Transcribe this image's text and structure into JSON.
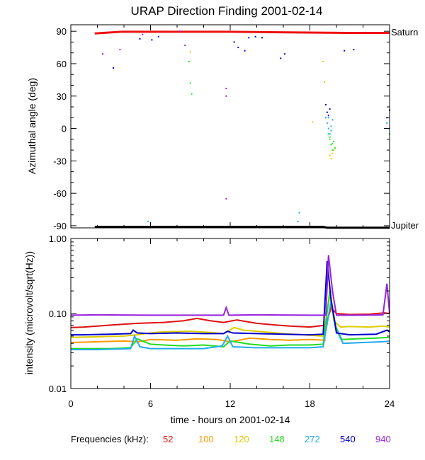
{
  "chart_data": [
    {
      "type": "scatter",
      "title": "URAP Direction Finding  2001-02-14",
      "ylabel": "Azimuthal angle (deg)",
      "xlim": [
        0,
        24
      ],
      "ylim": [
        -92,
        96
      ],
      "yticks": [
        "90",
        "60",
        "30",
        "0",
        "-30",
        "-60",
        "-90"
      ],
      "reference_labels": {
        "top": "Saturn",
        "bottom": "Jupiter"
      },
      "reference_lines": [
        {
          "name": "Saturn",
          "color": "#ee1111",
          "x": [
            1.8,
            3.8,
            11.8,
            20.8,
            24
          ],
          "y": [
            88,
            89.5,
            89.5,
            88.5,
            88.5
          ]
        },
        {
          "name": "Jupiter",
          "color": "#000000",
          "x": [
            1.8,
            19,
            19.3,
            24
          ],
          "y": [
            -91,
            -91,
            -91.8,
            -91.8
          ]
        }
      ],
      "series": [
        {
          "color": "#9922dd",
          "x": [
            2.4,
            3.2,
            3.7,
            5.4,
            8.2,
            8.6,
            11.7,
            11.7,
            11.7
          ],
          "y": [
            69,
            56,
            73,
            87,
            90,
            77,
            37,
            30,
            -65
          ]
        },
        {
          "color": "#0000cc",
          "x": [
            3.2,
            5.2,
            6.1,
            6.6,
            12.3,
            12.6,
            13.1,
            13.4,
            13.9,
            14.4,
            15.8,
            16.1,
            20.6,
            21.3,
            24.0,
            23.8,
            19.2,
            19.3,
            19.4,
            19.5
          ],
          "y": [
            56,
            83,
            82,
            85,
            80,
            75,
            72,
            84,
            85,
            84,
            65,
            69,
            72,
            73,
            17,
            10,
            22,
            15,
            12,
            18
          ]
        },
        {
          "color": "#22aaee",
          "x": [
            5.8,
            17.2,
            17.1,
            19.2,
            19.3,
            19.4,
            19.5,
            19.6,
            19.7,
            19.4,
            19.6,
            23.8,
            24.0
          ],
          "y": [
            -86,
            -78,
            -86,
            10,
            5,
            0,
            -5,
            -2,
            8,
            10,
            2,
            5,
            0
          ]
        },
        {
          "color": "#22ee22",
          "x": [
            8.9,
            9.0,
            9.1,
            19.4,
            19.5,
            19.6,
            19.7,
            19.8,
            19.9,
            19.5,
            19.7,
            24.0
          ],
          "y": [
            62,
            42,
            32,
            -5,
            -10,
            -15,
            -20,
            -12,
            -18,
            -8,
            -14,
            -5
          ]
        },
        {
          "color": "#ddcc00",
          "x": [
            9.0,
            18.2,
            19.0,
            19.1,
            19.5,
            19.6,
            19.8,
            19.7
          ],
          "y": [
            71,
            6,
            62,
            43,
            -25,
            -28,
            -20,
            -23
          ]
        }
      ]
    },
    {
      "type": "line",
      "ylabel": "intensity (microvolt/sqrt(Hz))",
      "xlabel": "time - hours on 2001-02-14",
      "xlim": [
        0,
        24
      ],
      "ylim": [
        0.01,
        1.0
      ],
      "yscale": "log",
      "yticks": [
        "1.00",
        "0.10",
        "0.01"
      ],
      "xticks": [
        "0",
        "6",
        "12",
        "18",
        "24"
      ],
      "legend_label": "Frequencies (kHz):",
      "legend_placement": "bottom",
      "series": [
        {
          "name": "52",
          "color": "#dd1111",
          "x": [
            0,
            1,
            3,
            5,
            7,
            8.5,
            9.5,
            10.5,
            11.5,
            12.5,
            14,
            15.5,
            16.5,
            18,
            19.2,
            19.6,
            20,
            21,
            22.5,
            23.6,
            24
          ],
          "y": [
            0.065,
            0.066,
            0.07,
            0.074,
            0.076,
            0.08,
            0.086,
            0.08,
            0.076,
            0.082,
            0.074,
            0.07,
            0.068,
            0.066,
            0.07,
            0.12,
            0.1,
            0.097,
            0.098,
            0.102,
            0.1
          ]
        },
        {
          "name": "100",
          "color": "#ff9900",
          "x": [
            0,
            2,
            4,
            5,
            6,
            8,
            9.5,
            11,
            12,
            13.5,
            15,
            16.5,
            18,
            19.2
          ],
          "y": [
            0.041,
            0.042,
            0.043,
            0.042,
            0.045,
            0.044,
            0.046,
            0.045,
            0.042,
            0.047,
            0.045,
            0.044,
            0.045,
            0.044
          ]
        },
        {
          "name": "120",
          "color": "#ddcc00",
          "x": [
            0,
            2,
            4,
            5,
            6,
            7,
            9,
            10.5,
            11.5,
            12.3,
            13,
            14.5,
            16,
            17.5,
            19,
            19.5,
            19.8,
            20.3,
            21,
            22.5,
            23.5,
            24
          ],
          "y": [
            0.048,
            0.049,
            0.05,
            0.052,
            0.055,
            0.057,
            0.058,
            0.056,
            0.054,
            0.065,
            0.06,
            0.057,
            0.054,
            0.052,
            0.05,
            0.18,
            0.08,
            0.066,
            0.067,
            0.066,
            0.068,
            0.066
          ]
        },
        {
          "name": "148",
          "color": "#22dd22",
          "x": [
            0,
            3,
            4.5,
            5,
            6,
            7,
            8.5,
            10,
            11.5,
            12,
            13.5,
            15,
            16.5,
            18,
            19,
            19.5,
            19.9,
            20.4,
            21.5,
            23,
            24
          ],
          "y": [
            0.034,
            0.034,
            0.035,
            0.046,
            0.039,
            0.038,
            0.037,
            0.038,
            0.036,
            0.043,
            0.039,
            0.037,
            0.038,
            0.038,
            0.039,
            0.2,
            0.07,
            0.045,
            0.046,
            0.047,
            0.048
          ]
        },
        {
          "name": "272",
          "color": "#22aaee",
          "x": [
            0,
            2,
            4.5,
            4.8,
            5.2,
            6,
            8,
            10,
            11.4,
            11.8,
            12.2,
            14,
            16,
            18,
            19,
            19.6,
            20,
            20.5,
            22,
            23.5,
            24
          ],
          "y": [
            0.033,
            0.033,
            0.034,
            0.05,
            0.036,
            0.034,
            0.034,
            0.034,
            0.037,
            0.05,
            0.036,
            0.035,
            0.035,
            0.035,
            0.036,
            0.15,
            0.06,
            0.04,
            0.041,
            0.042,
            0.043
          ]
        },
        {
          "name": "540",
          "color": "#0000cc",
          "x": [
            0,
            1,
            3,
            4.5,
            4.7,
            5,
            6,
            8,
            10,
            11.5,
            11.8,
            12.2,
            14,
            16,
            18,
            19,
            19.3,
            19.6,
            20,
            21,
            23,
            23.8,
            24
          ],
          "y": [
            0.052,
            0.052,
            0.053,
            0.054,
            0.06,
            0.055,
            0.054,
            0.055,
            0.054,
            0.054,
            0.058,
            0.055,
            0.054,
            0.053,
            0.052,
            0.053,
            0.5,
            0.15,
            0.055,
            0.052,
            0.053,
            0.06,
            0.057
          ]
        },
        {
          "name": "940",
          "color": "#9922dd",
          "x": [
            0,
            2,
            6,
            10,
            11.5,
            11.7,
            11.9,
            14,
            18,
            19.2,
            19.4,
            19.7,
            20,
            22,
            23.5,
            23.8,
            24
          ],
          "y": [
            0.095,
            0.096,
            0.095,
            0.095,
            0.095,
            0.12,
            0.095,
            0.096,
            0.095,
            0.095,
            0.6,
            0.2,
            0.095,
            0.095,
            0.096,
            0.25,
            0.1
          ]
        }
      ]
    }
  ]
}
